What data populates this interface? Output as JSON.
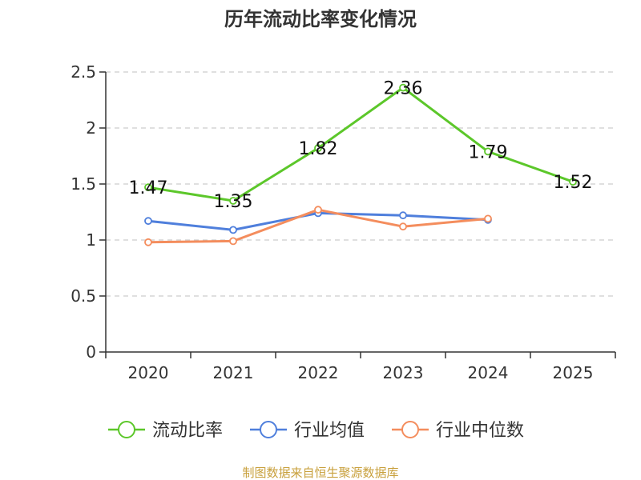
{
  "chart_data": {
    "type": "line",
    "title": "历年流动比率变化情况",
    "categories": [
      "2020",
      "2021",
      "2022",
      "2023",
      "2024",
      "2025"
    ],
    "ylim": [
      0,
      2.5
    ],
    "yticks": [
      "0",
      "0.5",
      "1",
      "1.5",
      "2",
      "2.5"
    ],
    "ytick_values": [
      0,
      0.5,
      1,
      1.5,
      2,
      2.5
    ],
    "grid": true,
    "legend_position": "bottom",
    "series": [
      {
        "name": "流动比率",
        "color": "#5cc72a",
        "values": [
          1.47,
          1.35,
          1.82,
          2.36,
          1.79,
          1.52
        ],
        "labels": [
          "1.47",
          "1.35",
          "1.82",
          "2.36",
          "1.79",
          "1.52"
        ]
      },
      {
        "name": "行业均值",
        "color": "#4f7fdc",
        "values": [
          1.17,
          1.09,
          1.24,
          1.22,
          1.18,
          null
        ]
      },
      {
        "name": "行业中位数",
        "color": "#f48d5d",
        "values": [
          0.98,
          0.99,
          1.27,
          1.12,
          1.19,
          null
        ]
      }
    ]
  },
  "source": "制图数据来自恒生聚源数据库"
}
